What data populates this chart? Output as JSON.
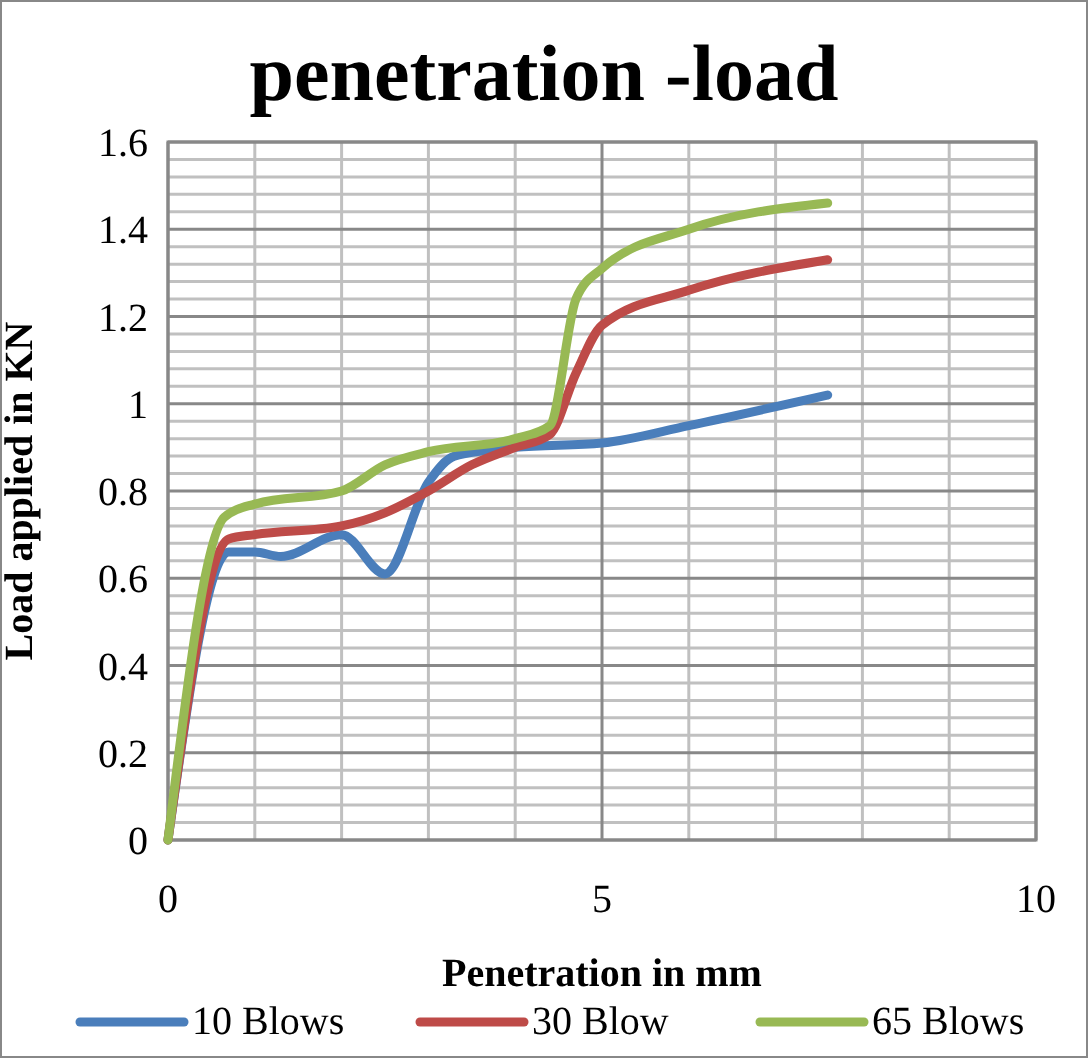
{
  "chart_data": {
    "type": "line",
    "title": "penetration -load",
    "xlabel": "Penetration in mm",
    "ylabel": "Load applied in KN",
    "xlim": [
      0,
      10
    ],
    "xticks": [
      0,
      5,
      10
    ],
    "ylim": [
      0,
      1.6
    ],
    "yticks": [
      0,
      0.2,
      0.4,
      0.6,
      0.8,
      1,
      1.2,
      1.4,
      1.6
    ],
    "grid": true,
    "legend": "bottom",
    "marker": "none",
    "line_style": "solid",
    "series": [
      {
        "name": "10 Blows",
        "color": "#4a7ebb",
        "x": [
          0,
          0.7,
          1,
          1.3,
          2,
          2.5,
          3,
          3.3,
          4,
          5,
          6,
          7.6
        ],
        "values": [
          0,
          0.66,
          0.66,
          0.65,
          0.7,
          0.61,
          0.82,
          0.88,
          0.9,
          0.91,
          0.95,
          1.02
        ]
      },
      {
        "name": "30 Blow",
        "color": "#be4b48",
        "x": [
          0,
          0.7,
          1,
          2,
          2.5,
          3,
          3.5,
          4,
          4.4,
          4.7,
          5,
          6,
          7.6
        ],
        "values": [
          0,
          0.69,
          0.7,
          0.72,
          0.75,
          0.8,
          0.86,
          0.9,
          0.93,
          1.07,
          1.18,
          1.26,
          1.33
        ]
      },
      {
        "name": "65 Blows",
        "color": "#98b954",
        "x": [
          0,
          0.65,
          1,
          2,
          2.5,
          3,
          4,
          4.4,
          4.7,
          5,
          6,
          7.6
        ],
        "values": [
          0,
          0.74,
          0.77,
          0.8,
          0.86,
          0.89,
          0.92,
          0.95,
          1.24,
          1.31,
          1.4,
          1.46
        ]
      }
    ]
  }
}
